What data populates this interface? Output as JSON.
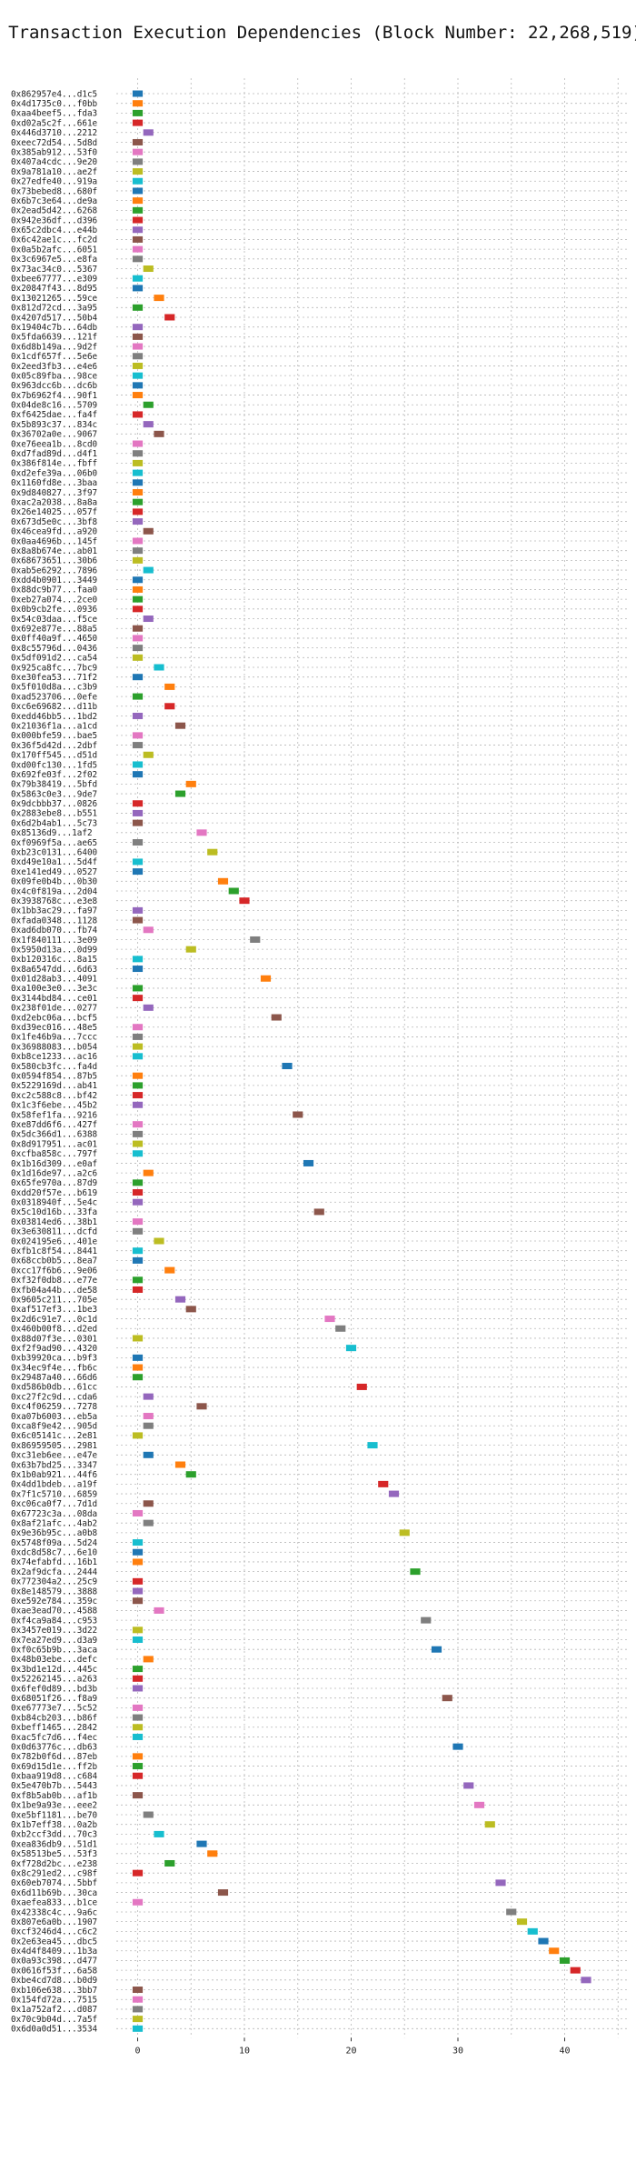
{
  "chart_data": {
    "type": "gantt",
    "title": "Transaction Execution Dependencies (Block Number: 22,268,519)",
    "xlabel": "",
    "ylabel": "",
    "xlim": [
      -2,
      46
    ],
    "x_ticks": [
      0,
      10,
      20,
      30,
      40
    ],
    "grid": true,
    "palette": [
      "#1f77b4",
      "#ff7f0e",
      "#2ca02c",
      "#d62728",
      "#9467bd",
      "#8c564b",
      "#e377c2",
      "#7f7f7f",
      "#bcbd22",
      "#17becf"
    ],
    "transactions": [
      {
        "label": "0x862957e4...d1c5",
        "start": 0,
        "color": 0
      },
      {
        "label": "0x4d1735c0...f0bb",
        "start": 0,
        "color": 1
      },
      {
        "label": "0xaa4beef5...fda3",
        "start": 0,
        "color": 2
      },
      {
        "label": "0xd02a5c2f...661e",
        "start": 0,
        "color": 3
      },
      {
        "label": "0x446d3710...2212",
        "start": 1,
        "color": 4
      },
      {
        "label": "0xeec72d54...5d8d",
        "start": 0,
        "color": 5
      },
      {
        "label": "0x385ab912...53f0",
        "start": 0,
        "color": 6
      },
      {
        "label": "0x407a4cdc...9e20",
        "start": 0,
        "color": 7
      },
      {
        "label": "0x9a781a10...ae2f",
        "start": 0,
        "color": 8
      },
      {
        "label": "0x27edfe40...919a",
        "start": 0,
        "color": 9
      },
      {
        "label": "0x73bebed8...680f",
        "start": 0,
        "color": 0
      },
      {
        "label": "0x6b7c3e64...de9a",
        "start": 0,
        "color": 1
      },
      {
        "label": "0x2ead5d42...6268",
        "start": 0,
        "color": 2
      },
      {
        "label": "0x942e36df...d396",
        "start": 0,
        "color": 3
      },
      {
        "label": "0x65c2dbc4...e44b",
        "start": 0,
        "color": 4
      },
      {
        "label": "0x6c42ae1c...fc2d",
        "start": 0,
        "color": 5
      },
      {
        "label": "0x0a5b2afc...6051",
        "start": 0,
        "color": 6
      },
      {
        "label": "0x3c6967e5...e8fa",
        "start": 0,
        "color": 7
      },
      {
        "label": "0x73ac34c0...5367",
        "start": 1,
        "color": 8
      },
      {
        "label": "0xbee67777...e309",
        "start": 0,
        "color": 9
      },
      {
        "label": "0x20847f43...8d95",
        "start": 0,
        "color": 0
      },
      {
        "label": "0x13021265...59ce",
        "start": 2,
        "color": 1
      },
      {
        "label": "0x812d72cd...3a95",
        "start": 0,
        "color": 2
      },
      {
        "label": "0x4207d517...50b4",
        "start": 3,
        "color": 3
      },
      {
        "label": "0x19404c7b...64db",
        "start": 0,
        "color": 4
      },
      {
        "label": "0x5fda6639...121f",
        "start": 0,
        "color": 5
      },
      {
        "label": "0x6d8b149a...9d2f",
        "start": 0,
        "color": 6
      },
      {
        "label": "0x1cdf657f...5e6e",
        "start": 0,
        "color": 7
      },
      {
        "label": "0x2eed3fb3...e4e6",
        "start": 0,
        "color": 8
      },
      {
        "label": "0x05c89fba...98ce",
        "start": 0,
        "color": 9
      },
      {
        "label": "0x963dcc6b...dc6b",
        "start": 0,
        "color": 0
      },
      {
        "label": "0x7b6962f4...90f1",
        "start": 0,
        "color": 1
      },
      {
        "label": "0x04de8c16...5709",
        "start": 1,
        "color": 2
      },
      {
        "label": "0xf6425dae...fa4f",
        "start": 0,
        "color": 3
      },
      {
        "label": "0x5b893c37...834c",
        "start": 1,
        "color": 4
      },
      {
        "label": "0x36702a0e...9067",
        "start": 2,
        "color": 5
      },
      {
        "label": "0xe76eea1b...8cd0",
        "start": 0,
        "color": 6
      },
      {
        "label": "0xd7fad89d...d4f1",
        "start": 0,
        "color": 7
      },
      {
        "label": "0x386f814e...fbff",
        "start": 0,
        "color": 8
      },
      {
        "label": "0xd2efe39a...06b0",
        "start": 0,
        "color": 9
      },
      {
        "label": "0x1160fd8e...3baa",
        "start": 0,
        "color": 0
      },
      {
        "label": "0x9d840827...3f97",
        "start": 0,
        "color": 1
      },
      {
        "label": "0xac2a2038...8a8a",
        "start": 0,
        "color": 2
      },
      {
        "label": "0x26e14025...057f",
        "start": 0,
        "color": 3
      },
      {
        "label": "0x673d5e0c...3bf8",
        "start": 0,
        "color": 4
      },
      {
        "label": "0x46cea9fd...a920",
        "start": 1,
        "color": 5
      },
      {
        "label": "0x0aa4696b...145f",
        "start": 0,
        "color": 6
      },
      {
        "label": "0x8a8b674e...ab01",
        "start": 0,
        "color": 7
      },
      {
        "label": "0x68673651...30b6",
        "start": 0,
        "color": 8
      },
      {
        "label": "0xab5e6292...7896",
        "start": 1,
        "color": 9
      },
      {
        "label": "0xdd4b0901...3449",
        "start": 0,
        "color": 0
      },
      {
        "label": "0x88dc9b77...faa0",
        "start": 0,
        "color": 1
      },
      {
        "label": "0xeb27a074...2ce0",
        "start": 0,
        "color": 2
      },
      {
        "label": "0x0b9cb2fe...0936",
        "start": 0,
        "color": 3
      },
      {
        "label": "0x54c03daa...f5ce",
        "start": 1,
        "color": 4
      },
      {
        "label": "0x692e877e...88a5",
        "start": 0,
        "color": 5
      },
      {
        "label": "0x0ff40a9f...4650",
        "start": 0,
        "color": 6
      },
      {
        "label": "0x8c55796d...0436",
        "start": 0,
        "color": 7
      },
      {
        "label": "0x5df091d2...ca54",
        "start": 0,
        "color": 8
      },
      {
        "label": "0x925ca8fc...7bc9",
        "start": 2,
        "color": 9
      },
      {
        "label": "0xe30fea53...71f2",
        "start": 0,
        "color": 0
      },
      {
        "label": "0x5f010d8a...c3b9",
        "start": 3,
        "color": 1
      },
      {
        "label": "0xad523706...0efe",
        "start": 0,
        "color": 2
      },
      {
        "label": "0xc6e69682...d11b",
        "start": 3,
        "color": 3
      },
      {
        "label": "0xedd46bb5...1bd2",
        "start": 0,
        "color": 4
      },
      {
        "label": "0x21036f1a...a1cd",
        "start": 4,
        "color": 5
      },
      {
        "label": "0x000bfe59...bae5",
        "start": 0,
        "color": 6
      },
      {
        "label": "0x36f5d42d...2dbf",
        "start": 0,
        "color": 7
      },
      {
        "label": "0x170ff545...d51d",
        "start": 1,
        "color": 8
      },
      {
        "label": "0xd00fc130...1fd5",
        "start": 0,
        "color": 9
      },
      {
        "label": "0x692fe03f...2f02",
        "start": 0,
        "color": 0
      },
      {
        "label": "0x79b38419...5bfd",
        "start": 5,
        "color": 1
      },
      {
        "label": "0x5863c0e3...9de7",
        "start": 4,
        "color": 2
      },
      {
        "label": "0x9dcbbb37...0826",
        "start": 0,
        "color": 3
      },
      {
        "label": "0x2883ebe8...b551",
        "start": 0,
        "color": 4
      },
      {
        "label": "0x6d2b4ab1...5c73",
        "start": 0,
        "color": 5
      },
      {
        "label": "0x85136d9...1af2",
        "start": 6,
        "color": 6
      },
      {
        "label": "0xf0969f5a...ae65",
        "start": 0,
        "color": 7
      },
      {
        "label": "0xb23c0131...6400",
        "start": 7,
        "color": 8
      },
      {
        "label": "0xd49e10a1...5d4f",
        "start": 0,
        "color": 9
      },
      {
        "label": "0xe141ed49...0527",
        "start": 0,
        "color": 0
      },
      {
        "label": "0x09fe0b4b...0b30",
        "start": 8,
        "color": 1
      },
      {
        "label": "0x4c0f819a...2d04",
        "start": 9,
        "color": 2
      },
      {
        "label": "0x3938768c...e3e8",
        "start": 10,
        "color": 3
      },
      {
        "label": "0x1bb3ac29...fa97",
        "start": 0,
        "color": 4
      },
      {
        "label": "0xfada0348...1128",
        "start": 0,
        "color": 5
      },
      {
        "label": "0xad6db070...fb74",
        "start": 1,
        "color": 6
      },
      {
        "label": "0x1f840111...3e09",
        "start": 11,
        "color": 7
      },
      {
        "label": "0x5950d13a...0d99",
        "start": 5,
        "color": 8
      },
      {
        "label": "0xb120316c...8a15",
        "start": 0,
        "color": 9
      },
      {
        "label": "0x8a6547dd...6d63",
        "start": 0,
        "color": 0
      },
      {
        "label": "0x01d28ab3...4091",
        "start": 12,
        "color": 1
      },
      {
        "label": "0xa100e3e0...3e3c",
        "start": 0,
        "color": 2
      },
      {
        "label": "0x3144bd84...ce01",
        "start": 0,
        "color": 3
      },
      {
        "label": "0x238f01de...0277",
        "start": 1,
        "color": 4
      },
      {
        "label": "0xd2ebc06a...bcf5",
        "start": 13,
        "color": 5
      },
      {
        "label": "0xd39ec016...48e5",
        "start": 0,
        "color": 6
      },
      {
        "label": "0x1fe46b9a...7ccc",
        "start": 0,
        "color": 7
      },
      {
        "label": "0x36988083...b054",
        "start": 0,
        "color": 8
      },
      {
        "label": "0xb8ce1233...ac16",
        "start": 0,
        "color": 9
      },
      {
        "label": "0x580cb3fc...fa4d",
        "start": 14,
        "color": 0
      },
      {
        "label": "0x0594f854...87b5",
        "start": 0,
        "color": 1
      },
      {
        "label": "0x5229169d...ab41",
        "start": 0,
        "color": 2
      },
      {
        "label": "0xc2c588c8...bf42",
        "start": 0,
        "color": 3
      },
      {
        "label": "0x1c3f6ebe...45b2",
        "start": 0,
        "color": 4
      },
      {
        "label": "0x58fef1fa...9216",
        "start": 15,
        "color": 5
      },
      {
        "label": "0xe87dd6f6...427f",
        "start": 0,
        "color": 6
      },
      {
        "label": "0x5dc366d1...6388",
        "start": 0,
        "color": 7
      },
      {
        "label": "0x8d917951...ac01",
        "start": 0,
        "color": 8
      },
      {
        "label": "0xcfba858c...797f",
        "start": 0,
        "color": 9
      },
      {
        "label": "0x1b16d309...e0af",
        "start": 16,
        "color": 0
      },
      {
        "label": "0x1d16de97...a2c6",
        "start": 1,
        "color": 1
      },
      {
        "label": "0x65fe970a...87d9",
        "start": 0,
        "color": 2
      },
      {
        "label": "0xdd20f57e...b619",
        "start": 0,
        "color": 3
      },
      {
        "label": "0x0318940f...5e4c",
        "start": 0,
        "color": 4
      },
      {
        "label": "0x5c10d16b...33fa",
        "start": 17,
        "color": 5
      },
      {
        "label": "0x03814ed6...38b1",
        "start": 0,
        "color": 6
      },
      {
        "label": "0x3e630811...dcfd",
        "start": 0,
        "color": 7
      },
      {
        "label": "0x024195e6...401e",
        "start": 2,
        "color": 8
      },
      {
        "label": "0xfb1c8f54...8441",
        "start": 0,
        "color": 9
      },
      {
        "label": "0x68ccb0b5...8ea7",
        "start": 0,
        "color": 0
      },
      {
        "label": "0xcc17f6b6...9e06",
        "start": 3,
        "color": 1
      },
      {
        "label": "0xf32f0db8...e77e",
        "start": 0,
        "color": 2
      },
      {
        "label": "0xfb04a44b...de58",
        "start": 0,
        "color": 3
      },
      {
        "label": "0x9605c211...705e",
        "start": 4,
        "color": 4
      },
      {
        "label": "0xaf517ef3...1be3",
        "start": 5,
        "color": 5
      },
      {
        "label": "0x2d6c91e7...0c1d",
        "start": 18,
        "color": 6
      },
      {
        "label": "0x460b00f8...d2ed",
        "start": 19,
        "color": 7
      },
      {
        "label": "0x88d07f3e...0301",
        "start": 0,
        "color": 8
      },
      {
        "label": "0xf2f9ad90...4320",
        "start": 20,
        "color": 9
      },
      {
        "label": "0xb39920ca...b9f3",
        "start": 0,
        "color": 0
      },
      {
        "label": "0x34ec9f4e...fb6c",
        "start": 0,
        "color": 1
      },
      {
        "label": "0x29487a40...66d6",
        "start": 0,
        "color": 2
      },
      {
        "label": "0xd586b0db...61cc",
        "start": 21,
        "color": 3
      },
      {
        "label": "0xc27f2c9d...cda6",
        "start": 1,
        "color": 4
      },
      {
        "label": "0xc4f06259...7278",
        "start": 6,
        "color": 5
      },
      {
        "label": "0xa07b6003...eb5a",
        "start": 1,
        "color": 6
      },
      {
        "label": "0xca8f9e42...905d",
        "start": 1,
        "color": 7
      },
      {
        "label": "0x6c05141c...2e81",
        "start": 0,
        "color": 8
      },
      {
        "label": "0x86959505...2981",
        "start": 22,
        "color": 9
      },
      {
        "label": "0xc31eb6ee...e47e",
        "start": 1,
        "color": 0
      },
      {
        "label": "0x63b7bd25...3347",
        "start": 4,
        "color": 1
      },
      {
        "label": "0x1b0ab921...44f6",
        "start": 5,
        "color": 2
      },
      {
        "label": "0x4dd1bdeb...a19f",
        "start": 23,
        "color": 3
      },
      {
        "label": "0x7f1c5710...6859",
        "start": 24,
        "color": 4
      },
      {
        "label": "0xc06ca0f7...7d1d",
        "start": 1,
        "color": 5
      },
      {
        "label": "0x67723c3a...08da",
        "start": 0,
        "color": 6
      },
      {
        "label": "0x8af21afc...4ab2",
        "start": 1,
        "color": 7
      },
      {
        "label": "0x9e36b95c...a0b8",
        "start": 25,
        "color": 8
      },
      {
        "label": "0x5748f09a...5d24",
        "start": 0,
        "color": 9
      },
      {
        "label": "0xdc8d58c7...6e10",
        "start": 0,
        "color": 0
      },
      {
        "label": "0x74efabfd...16b1",
        "start": 0,
        "color": 1
      },
      {
        "label": "0x2af9dcfa...2444",
        "start": 26,
        "color": 2
      },
      {
        "label": "0x772304a2...25c9",
        "start": 0,
        "color": 3
      },
      {
        "label": "0x8e148579...3888",
        "start": 0,
        "color": 4
      },
      {
        "label": "0xe592e784...359c",
        "start": 0,
        "color": 5
      },
      {
        "label": "0xae3ead70...4588",
        "start": 2,
        "color": 6
      },
      {
        "label": "0xf4ca9a84...c953",
        "start": 27,
        "color": 7
      },
      {
        "label": "0x3457e019...3d22",
        "start": 0,
        "color": 8
      },
      {
        "label": "0x7ea27ed9...d3a9",
        "start": 0,
        "color": 9
      },
      {
        "label": "0xf0c65b9b...3aca",
        "start": 28,
        "color": 0
      },
      {
        "label": "0x48b03ebe...defc",
        "start": 1,
        "color": 1
      },
      {
        "label": "0x3bd1e12d...445c",
        "start": 0,
        "color": 2
      },
      {
        "label": "0x52262145...a263",
        "start": 0,
        "color": 3
      },
      {
        "label": "0x6fef0d89...bd3b",
        "start": 0,
        "color": 4
      },
      {
        "label": "0x68051f26...f8a9",
        "start": 29,
        "color": 5
      },
      {
        "label": "0xe67773e7...5c52",
        "start": 0,
        "color": 6
      },
      {
        "label": "0xb84cb203...b86f",
        "start": 0,
        "color": 7
      },
      {
        "label": "0xbeff1465...2842",
        "start": 0,
        "color": 8
      },
      {
        "label": "0xac5fc7d6...f4ec",
        "start": 0,
        "color": 9
      },
      {
        "label": "0x0d63776c...db63",
        "start": 30,
        "color": 0
      },
      {
        "label": "0x782b0f6d...87eb",
        "start": 0,
        "color": 1
      },
      {
        "label": "0x69d15d1e...ff2b",
        "start": 0,
        "color": 2
      },
      {
        "label": "0xbaa919d8...c684",
        "start": 0,
        "color": 3
      },
      {
        "label": "0x5e470b7b...5443",
        "start": 31,
        "color": 4
      },
      {
        "label": "0xf8b5ab0b...af1b",
        "start": 0,
        "color": 5
      },
      {
        "label": "0x1be9a93e...eee2",
        "start": 32,
        "color": 6
      },
      {
        "label": "0xe5bf1181...be70",
        "start": 1,
        "color": 7
      },
      {
        "label": "0x1b7eff38...0a2b",
        "start": 33,
        "color": 8
      },
      {
        "label": "0xb2ccf3dd...70c3",
        "start": 2,
        "color": 9
      },
      {
        "label": "0xea836db9...51d1",
        "start": 6,
        "color": 0
      },
      {
        "label": "0x58513be5...53f3",
        "start": 7,
        "color": 1
      },
      {
        "label": "0xf728d2bc...e238",
        "start": 3,
        "color": 2
      },
      {
        "label": "0x8c291ed2...c98f",
        "start": 0,
        "color": 3
      },
      {
        "label": "0x60eb7074...5bbf",
        "start": 34,
        "color": 4
      },
      {
        "label": "0x6d11b69b...30ca",
        "start": 8,
        "color": 5
      },
      {
        "label": "0xaefea833...b1ce",
        "start": 0,
        "color": 6
      },
      {
        "label": "0x42338c4c...9a6c",
        "start": 35,
        "color": 7
      },
      {
        "label": "0x807e6a0b...1907",
        "start": 36,
        "color": 8
      },
      {
        "label": "0xcf3246d4...c6c2",
        "start": 37,
        "color": 9
      },
      {
        "label": "0x2e63ea45...dbc5",
        "start": 38,
        "color": 0
      },
      {
        "label": "0x4d4f8409...1b3a",
        "start": 39,
        "color": 1
      },
      {
        "label": "0x0a93c398...d477",
        "start": 40,
        "color": 2
      },
      {
        "label": "0x0616f53f...6a58",
        "start": 41,
        "color": 3
      },
      {
        "label": "0xbe4cd7d8...b0d9",
        "start": 42,
        "color": 4
      },
      {
        "label": "0xb106e638...3bb7",
        "start": 0,
        "color": 5
      },
      {
        "label": "0x154fd72a...7515",
        "start": 0,
        "color": 6
      },
      {
        "label": "0x1a752af2...d087",
        "start": 0,
        "color": 7
      },
      {
        "label": "0x70c9b04d...7a5f",
        "start": 0,
        "color": 8
      },
      {
        "label": "0x6d0a0d51...3534",
        "start": 0,
        "color": 9
      }
    ]
  }
}
